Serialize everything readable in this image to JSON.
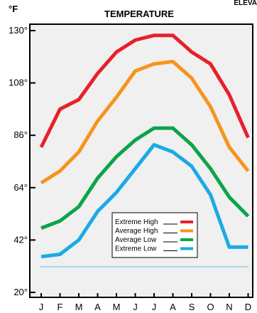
{
  "corner_text": "ELEVA",
  "chart_data": {
    "type": "line",
    "title": "TEMPERATURE",
    "unit_label": "°F",
    "categories": [
      "J",
      "F",
      "M",
      "A",
      "M",
      "J",
      "J",
      "A",
      "S",
      "O",
      "N",
      "D"
    ],
    "y_ticks": [
      "130°",
      "108°",
      "86°",
      "64°",
      "42°",
      "20°"
    ],
    "ylim": [
      20,
      130
    ],
    "grid": false,
    "legend_position": "bottom-center",
    "series": [
      {
        "name": "Extreme High",
        "color": "#e8202a",
        "values": [
          81,
          97,
          101,
          112,
          121,
          126,
          128,
          128,
          121,
          116,
          103,
          85
        ]
      },
      {
        "name": "Average High",
        "color": "#f7941d",
        "values": [
          66,
          71,
          79,
          92,
          102,
          113,
          116,
          117,
          110,
          98,
          81,
          71
        ]
      },
      {
        "name": "Average Low",
        "color": "#0ca44a",
        "values": [
          47,
          50,
          56,
          68,
          77,
          84,
          89,
          89,
          82,
          72,
          60,
          52
        ]
      },
      {
        "name": "Extreme Low",
        "color": "#1aaae6",
        "values": [
          35,
          36,
          42,
          54,
          62,
          72,
          82,
          79,
          73,
          61,
          39,
          39
        ]
      }
    ],
    "reference_line": {
      "color": "#a8d8f0"
    }
  }
}
